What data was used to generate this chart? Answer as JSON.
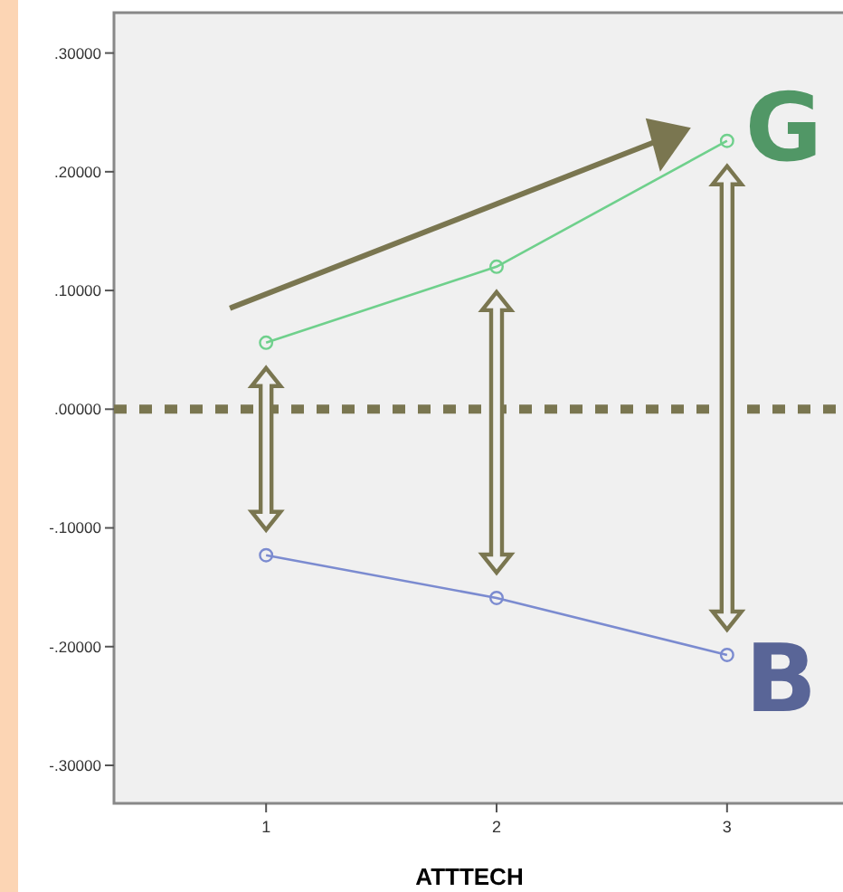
{
  "chart_data": {
    "type": "line",
    "xlabel": "ATTTECH",
    "categories": [
      "1",
      "2",
      "3"
    ],
    "series": [
      {
        "name": "G",
        "color": "#6fd08c",
        "values": [
          0.056,
          0.12,
          0.226
        ]
      },
      {
        "name": "B",
        "color": "#7b8bd0",
        "values": [
          -0.123,
          -0.159,
          -0.207
        ]
      }
    ],
    "ylim": [
      -0.332,
      0.334
    ],
    "yticks": [
      {
        "value": -0.3,
        "label": "-.30000"
      },
      {
        "value": -0.2,
        "label": "-.20000"
      },
      {
        "value": -0.1,
        "label": "-.10000"
      },
      {
        "value": 0,
        "label": ".00000"
      },
      {
        "value": 0.1,
        "label": ".10000"
      },
      {
        "value": 0.2,
        "label": ".20000"
      },
      {
        "value": 0.3,
        "label": ".30000"
      }
    ],
    "ref_lines": [
      {
        "axis": "y",
        "value": 0,
        "color": "#7a7650",
        "line_style": "dotted"
      }
    ],
    "marker": "circle",
    "grid": false
  }
}
